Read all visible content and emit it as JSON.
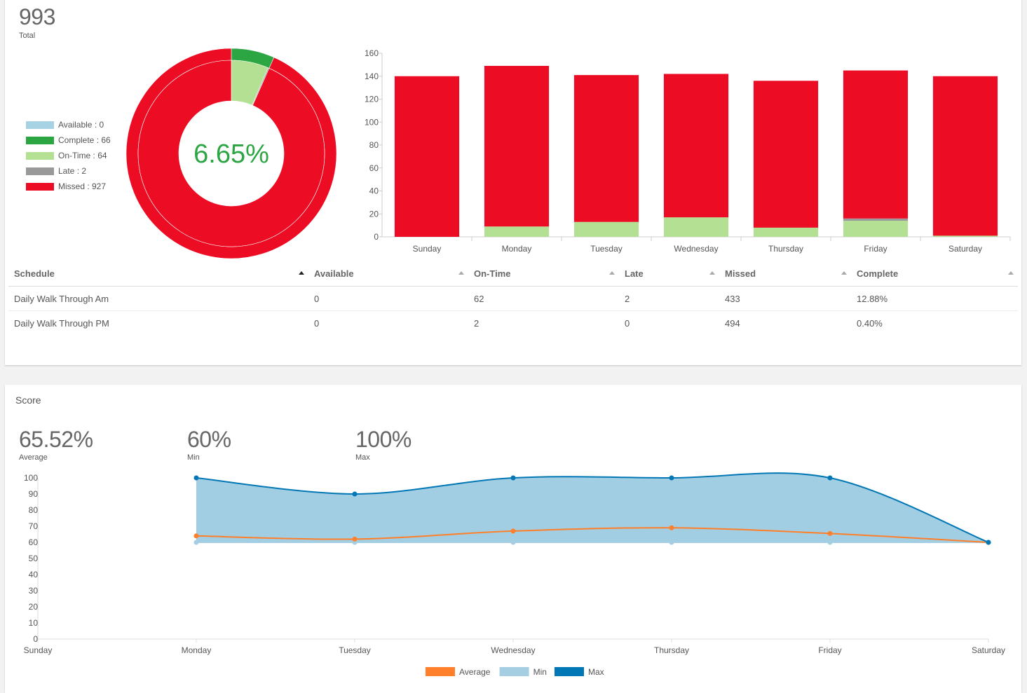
{
  "completion": {
    "total_value": "993",
    "total_label": "Total",
    "donut_center_text": "6.65%",
    "legend": [
      {
        "label": "Available : 0",
        "color": "#a6d2e4"
      },
      {
        "label": "Complete : 66",
        "color": "#2ca543"
      },
      {
        "label": "On-Time : 64",
        "color": "#b3e092"
      },
      {
        "label": "Late : 2",
        "color": "#999999"
      },
      {
        "label": "Missed : 927",
        "color": "#ec0d25"
      }
    ]
  },
  "table": {
    "headers": [
      "Schedule",
      "Available",
      "On-Time",
      "Late",
      "Missed",
      "Complete"
    ],
    "rows": [
      [
        "Daily Walk Through Am",
        "0",
        "62",
        "2",
        "433",
        "12.88%"
      ],
      [
        "Daily Walk Through PM",
        "0",
        "2",
        "0",
        "494",
        "0.40%"
      ]
    ]
  },
  "score": {
    "title": "Score",
    "stats": [
      {
        "value": "65.52%",
        "label": "Average"
      },
      {
        "value": "60%",
        "label": "Min"
      },
      {
        "value": "100%",
        "label": "Max"
      }
    ]
  },
  "chart_data": [
    {
      "type": "pie",
      "variant": "donut",
      "center_text": "6.65%",
      "outer_ring": [
        {
          "name": "Complete",
          "value": 66,
          "color": "#2ca543"
        },
        {
          "name": "Missed",
          "value": 927,
          "color": "#ec0d25"
        }
      ],
      "inner_ring": [
        {
          "name": "Available",
          "value": 0,
          "color": "#a6d2e4"
        },
        {
          "name": "On-Time",
          "value": 64,
          "color": "#b3e092"
        },
        {
          "name": "Late",
          "value": 2,
          "color": "#999999"
        },
        {
          "name": "Missed",
          "value": 927,
          "color": "#ec0d25"
        }
      ]
    },
    {
      "type": "bar",
      "stacked": true,
      "categories": [
        "Sunday",
        "Monday",
        "Tuesday",
        "Wednesday",
        "Thursday",
        "Friday",
        "Saturday"
      ],
      "series": [
        {
          "name": "Available",
          "color": "#a6d2e4",
          "values": [
            0,
            0,
            0,
            0,
            0,
            0,
            0
          ]
        },
        {
          "name": "On-Time",
          "color": "#b3e092",
          "values": [
            0,
            9,
            13,
            17,
            8,
            14,
            1
          ]
        },
        {
          "name": "Late",
          "color": "#999999",
          "values": [
            0,
            0,
            0,
            0,
            0,
            2,
            0
          ]
        },
        {
          "name": "Missed",
          "color": "#ec0d25",
          "values": [
            140,
            140,
            128,
            125,
            128,
            129,
            139
          ]
        }
      ],
      "yticks": [
        0,
        20,
        40,
        60,
        80,
        100,
        120,
        140,
        160
      ],
      "ylim": [
        0,
        160
      ],
      "grid": false
    },
    {
      "type": "area",
      "categories": [
        "Sunday",
        "Monday",
        "Tuesday",
        "Wednesday",
        "Thursday",
        "Friday",
        "Saturday"
      ],
      "series": [
        {
          "name": "Average",
          "color": "#ff7f2a",
          "values": [
            null,
            64,
            62,
            67,
            69,
            65.5,
            60
          ]
        },
        {
          "name": "Min",
          "color": "#a6cee3",
          "values": [
            null,
            60,
            60,
            60,
            60,
            60,
            60
          ]
        },
        {
          "name": "Max",
          "color": "#0277b5",
          "values": [
            null,
            100,
            90,
            100,
            100,
            100,
            60
          ]
        }
      ],
      "yticks": [
        0,
        10,
        20,
        30,
        40,
        50,
        60,
        70,
        80,
        90,
        100
      ],
      "ylim": [
        0,
        100
      ],
      "legend_position": "bottom-center",
      "grid": false
    }
  ]
}
